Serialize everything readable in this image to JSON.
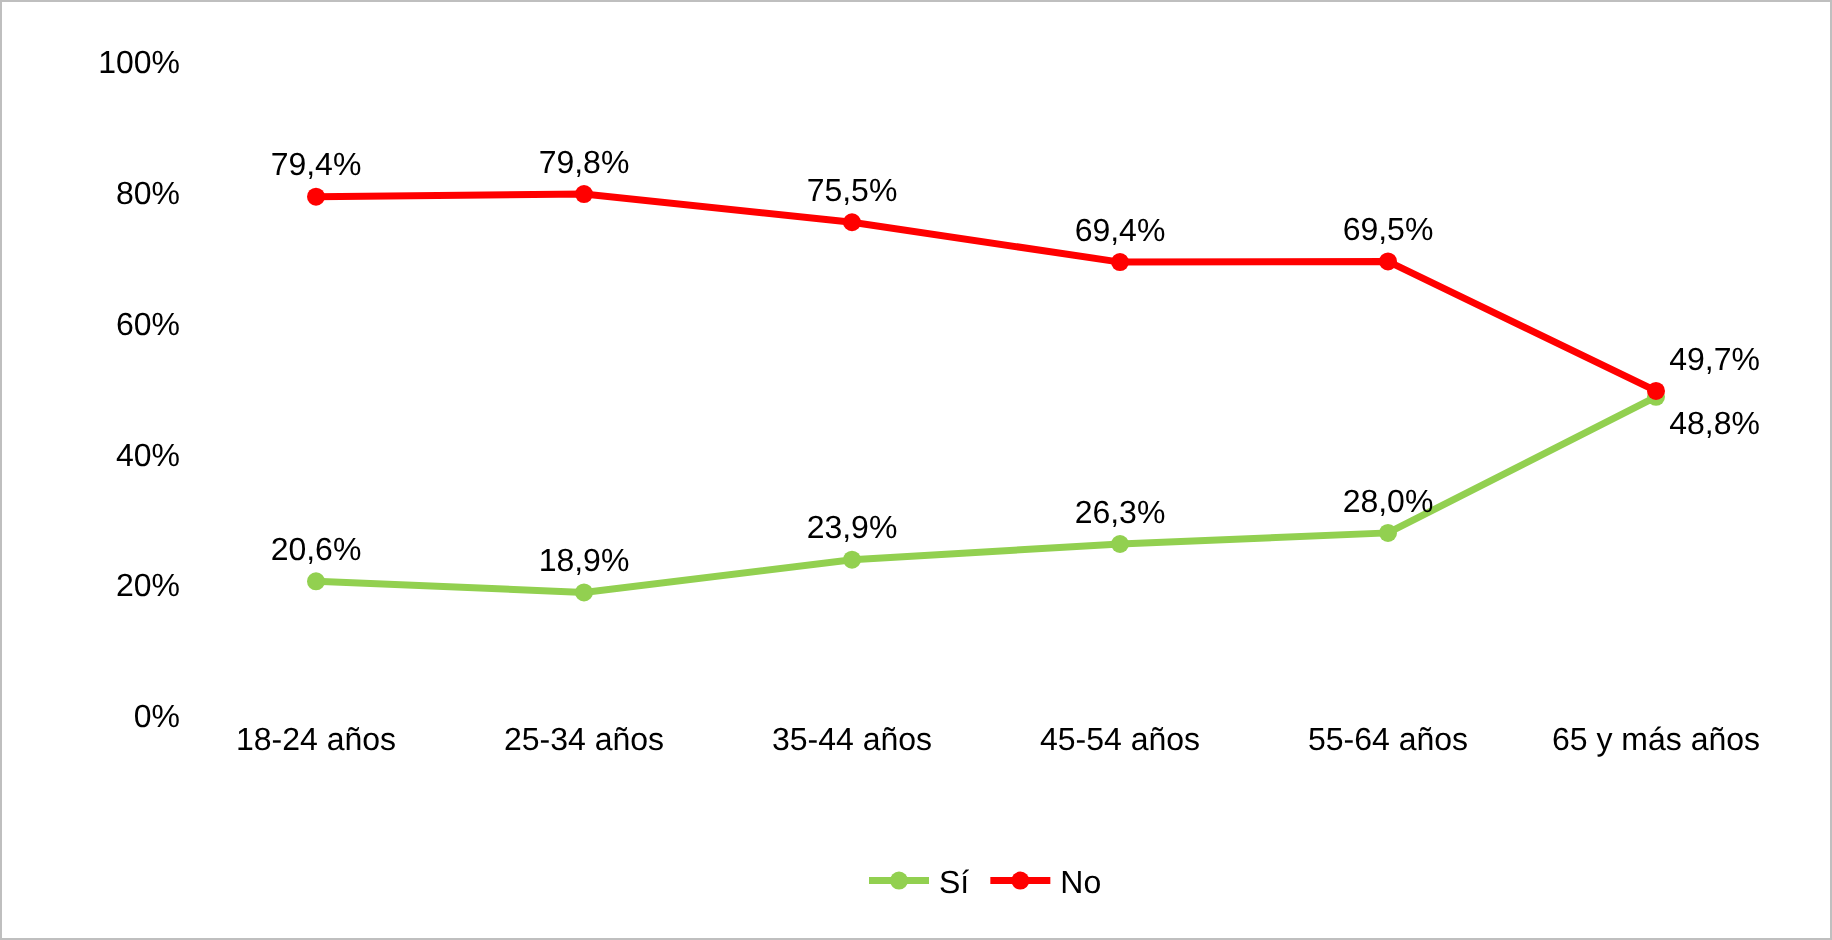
{
  "chart_data": {
    "type": "line",
    "categories": [
      "18-24 años",
      "25-34 años",
      "35-44 años",
      "45-54 años",
      "55-64 años",
      "65 y más años"
    ],
    "series": [
      {
        "name": "Sí",
        "color": "#92d050",
        "values": [
          20.6,
          18.9,
          23.9,
          26.3,
          28.0,
          48.8
        ],
        "value_labels": [
          "20,6%",
          "18,9%",
          "23,9%",
          "26,3%",
          "28,0%",
          "48,8%"
        ]
      },
      {
        "name": "No",
        "color": "#ff0000",
        "values": [
          79.4,
          79.8,
          75.5,
          69.4,
          69.5,
          49.7
        ],
        "value_labels": [
          "79,4%",
          "79,8%",
          "75,5%",
          "69,4%",
          "69,5%",
          "49,7%"
        ]
      }
    ],
    "ylim": [
      0,
      100
    ],
    "yticks": [
      {
        "value": 0,
        "label": "0%"
      },
      {
        "value": 20,
        "label": "20%"
      },
      {
        "value": 40,
        "label": "40%"
      },
      {
        "value": 60,
        "label": "60%"
      },
      {
        "value": 80,
        "label": "80%"
      },
      {
        "value": 100,
        "label": "100%"
      }
    ],
    "grid": false,
    "legend": "bottom",
    "marker": "circle",
    "line_style": "solid"
  }
}
